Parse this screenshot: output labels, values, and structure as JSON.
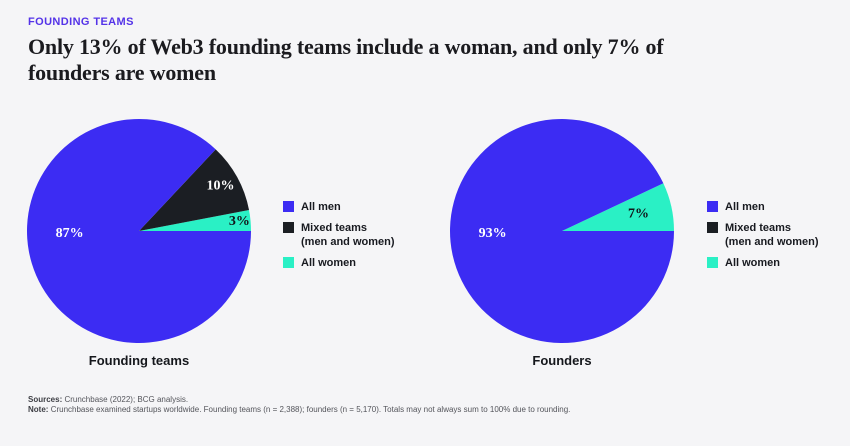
{
  "header": {
    "eyebrow": "FOUNDING TEAMS",
    "title_line1": "Only 13% of Web3 founding teams include a woman, and only 7% of",
    "title_line2": "founders are women"
  },
  "colors": {
    "background": "#f5f5f7",
    "accent_eyebrow": "#5433e8",
    "all_men": "#3c2cf3",
    "mixed_teams": "#1b1e23",
    "all_women": "#2af0c5",
    "title_text": "#1b1b1f",
    "footnote_text": "#54555b"
  },
  "legend": {
    "items": [
      {
        "label": "All men",
        "sublabel": ""
      },
      {
        "label": "Mixed teams",
        "sublabel": "(men and women)"
      },
      {
        "label": "All women",
        "sublabel": ""
      }
    ]
  },
  "chart_data": [
    {
      "type": "pie",
      "title": "Founding teams",
      "categories": [
        "All men",
        "Mixed teams (men and women)",
        "All women"
      ],
      "values": [
        87,
        10,
        3
      ],
      "unit": "%",
      "slice_colors": [
        "#3c2cf3",
        "#1b1e23",
        "#2af0c5"
      ],
      "label_colors": [
        "#ffffff",
        "#ffffff",
        "#12151a"
      ],
      "start_angle_deg": 0,
      "direction": "counterclockwise",
      "slice_order_from_3_oclock": [
        "All women",
        "Mixed teams (men and women)",
        "All men"
      ],
      "legend_position": "right"
    },
    {
      "type": "pie",
      "title": "Founders",
      "categories": [
        "All men",
        "Mixed teams (men and women)",
        "All women"
      ],
      "values": [
        93,
        0,
        7
      ],
      "unit": "%",
      "slice_colors": [
        "#3c2cf3",
        "#1b1e23",
        "#2af0c5"
      ],
      "label_colors": [
        "#ffffff",
        "#ffffff",
        "#12151a"
      ],
      "start_angle_deg": 0,
      "direction": "counterclockwise",
      "slice_order_from_3_oclock": [
        "All women",
        "All men"
      ],
      "legend_position": "right"
    }
  ],
  "footnotes": [
    {
      "label": "Sources:",
      "text": "Crunchbase (2022); BCG analysis."
    },
    {
      "label": "Note:",
      "text": "Crunchbase examined startups worldwide. Founding teams (n = 2,388); founders (n = 5,170). Totals may not always sum to 100% due to rounding."
    }
  ]
}
